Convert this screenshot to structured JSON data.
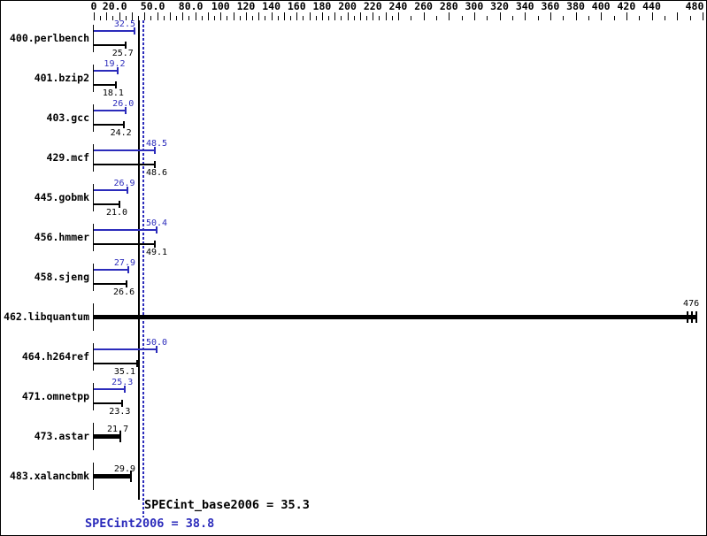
{
  "chart_data": {
    "type": "bar",
    "orientation": "horizontal",
    "axis": {
      "min": 0,
      "max": 480,
      "tick_labels": [
        {
          "v": 0,
          "t": "0"
        },
        {
          "v": 20,
          "t": "20.0"
        },
        {
          "v": 50,
          "t": "50.0"
        },
        {
          "v": 80,
          "t": "80.0"
        },
        {
          "v": 100,
          "t": "100"
        },
        {
          "v": 120,
          "t": "120"
        },
        {
          "v": 140,
          "t": "140"
        },
        {
          "v": 160,
          "t": "160"
        },
        {
          "v": 180,
          "t": "180"
        },
        {
          "v": 200,
          "t": "200"
        },
        {
          "v": 220,
          "t": "220"
        },
        {
          "v": 240,
          "t": "240"
        },
        {
          "v": 260,
          "t": "260"
        },
        {
          "v": 280,
          "t": "280"
        },
        {
          "v": 300,
          "t": "300"
        },
        {
          "v": 320,
          "t": "320"
        },
        {
          "v": 340,
          "t": "340"
        },
        {
          "v": 360,
          "t": "360"
        },
        {
          "v": 380,
          "t": "380"
        },
        {
          "v": 400,
          "t": "400"
        },
        {
          "v": 420,
          "t": "420"
        },
        {
          "v": 440,
          "t": "440"
        },
        {
          "v": 480,
          "t": "480"
        }
      ]
    },
    "categories": [
      "400.perlbench",
      "401.bzip2",
      "403.gcc",
      "429.mcf",
      "445.gobmk",
      "456.hmmer",
      "458.sjeng",
      "462.libquantum",
      "464.h264ref",
      "471.omnetpp",
      "473.astar",
      "483.xalancbmk"
    ],
    "series": [
      {
        "name": "SPECint2006 (peak)",
        "color": "#2b2bbb",
        "values": [
          32.5,
          19.2,
          26.0,
          48.5,
          26.9,
          50.4,
          27.9,
          476,
          50.0,
          25.3,
          21.7,
          29.9
        ],
        "labels": [
          "32.5",
          "19.2",
          "26.0",
          "48.5",
          "26.9",
          "50.4",
          "27.9",
          "476",
          "50.0",
          "25.3",
          "21.7",
          "29.9"
        ]
      },
      {
        "name": "SPECint_base2006 (base)",
        "color": "#000000",
        "values": [
          25.7,
          18.1,
          24.2,
          48.6,
          21.0,
          49.1,
          26.6,
          476,
          35.1,
          23.3,
          21.7,
          29.9
        ],
        "labels": [
          "25.7",
          "18.1",
          "24.2",
          "48.6",
          "21.0",
          "49.1",
          "26.6",
          "476",
          "35.1",
          "23.3",
          "21.7",
          "29.9"
        ]
      }
    ],
    "single_bar_rows": [
      {
        "index": 7,
        "label": "476",
        "value": 476,
        "end_marks": 3
      },
      {
        "index": 10,
        "label": "21.7",
        "value": 21.7,
        "end_marks": 1
      },
      {
        "index": 11,
        "label": "29.9",
        "value": 29.9,
        "end_marks": 1
      }
    ],
    "reference_lines": {
      "base": {
        "label": "SPECint_base2006 = 35.3",
        "value": 35.3,
        "style": "solid",
        "color": "#000000"
      },
      "peak": {
        "label": "SPECint2006 = 38.8",
        "value": 38.8,
        "style": "dotted",
        "color": "#2b2bbb"
      }
    },
    "legend_position": "none",
    "grid": false
  },
  "colors": {
    "background": "#ffffff",
    "border": "#000000",
    "peak_blue": "#2b2bbb",
    "base_black": "#000000"
  }
}
